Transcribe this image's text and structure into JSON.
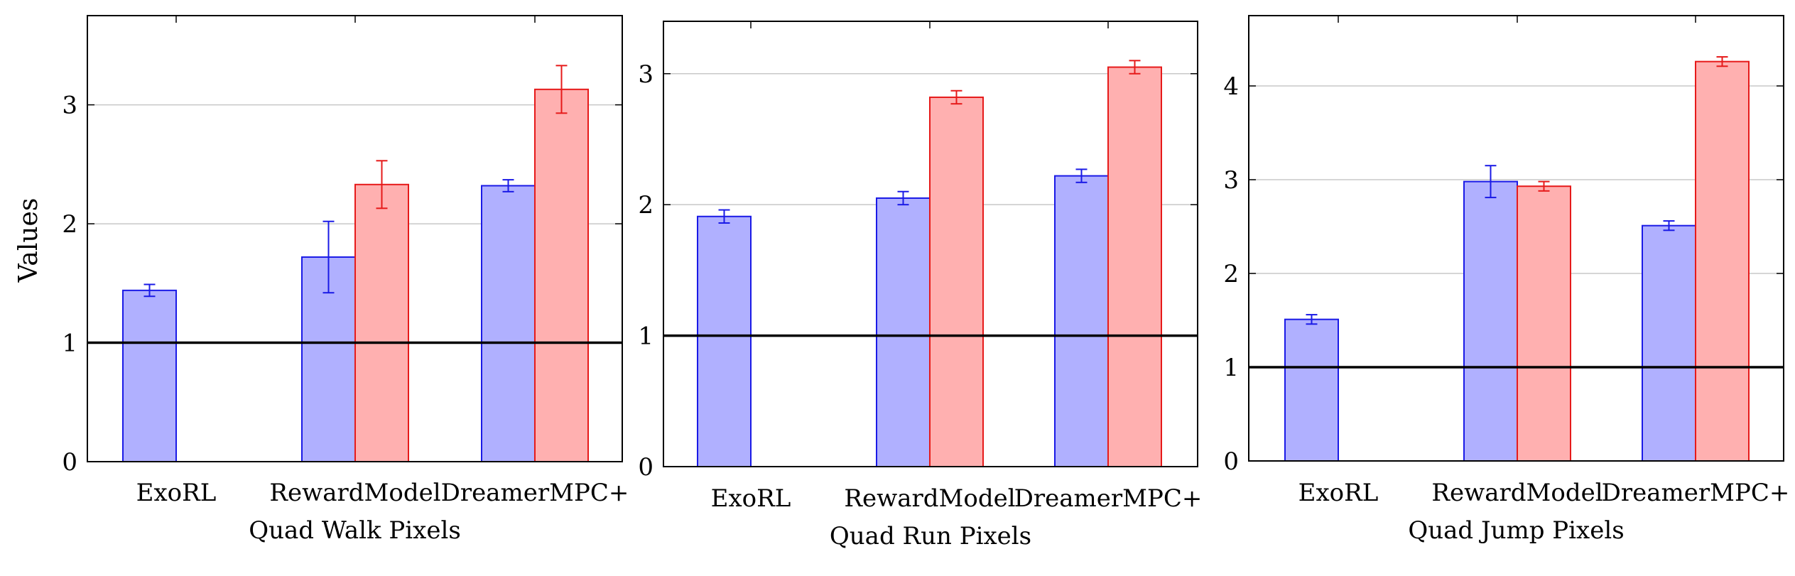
{
  "colors": {
    "series_a_fill": "#b0b0ff",
    "series_a_stroke": "#1a1ae6",
    "series_b_fill": "#ffb0b0",
    "series_b_stroke": "#e61a1a",
    "baseline": "#000000",
    "grid": "#c8c8c8"
  },
  "ylabel": "Values",
  "chart_data": [
    {
      "type": "bar",
      "xlabel": "Quad Walk Pixels",
      "ylabel": "Values",
      "categories": [
        "ExoRL",
        "RewardModel",
        "DreamerMPC+"
      ],
      "ylim": [
        0,
        3.75
      ],
      "yticks": [
        0,
        1,
        2,
        3
      ],
      "baseline": 1,
      "grid": true,
      "series": [
        {
          "values": [
            1.44,
            1.72,
            2.32
          ],
          "errors": [
            0.05,
            0.3,
            0.05
          ]
        },
        {
          "values": [
            null,
            2.33,
            3.13
          ],
          "errors": [
            null,
            0.2,
            0.2
          ]
        }
      ]
    },
    {
      "type": "bar",
      "xlabel": "Quad Run Pixels",
      "ylabel": "",
      "categories": [
        "ExoRL",
        "RewardModel",
        "DreamerMPC+"
      ],
      "ylim": [
        0,
        3.4
      ],
      "yticks": [
        0,
        1,
        2,
        3
      ],
      "baseline": 1,
      "grid": true,
      "series": [
        {
          "values": [
            1.91,
            2.05,
            2.22
          ],
          "errors": [
            0.05,
            0.05,
            0.05
          ]
        },
        {
          "values": [
            null,
            2.82,
            3.05
          ],
          "errors": [
            null,
            0.05,
            0.05
          ]
        }
      ]
    },
    {
      "type": "bar",
      "xlabel": "Quad Jump Pixels",
      "ylabel": "",
      "categories": [
        "ExoRL",
        "RewardModel",
        "DreamerMPC+"
      ],
      "ylim": [
        0,
        4.75
      ],
      "yticks": [
        0,
        1,
        2,
        3,
        4
      ],
      "baseline": 1,
      "grid": true,
      "series": [
        {
          "values": [
            1.51,
            2.98,
            2.51
          ],
          "errors": [
            0.05,
            0.17,
            0.05
          ]
        },
        {
          "values": [
            null,
            2.93,
            4.26
          ],
          "errors": [
            null,
            0.05,
            0.05
          ]
        }
      ]
    }
  ]
}
